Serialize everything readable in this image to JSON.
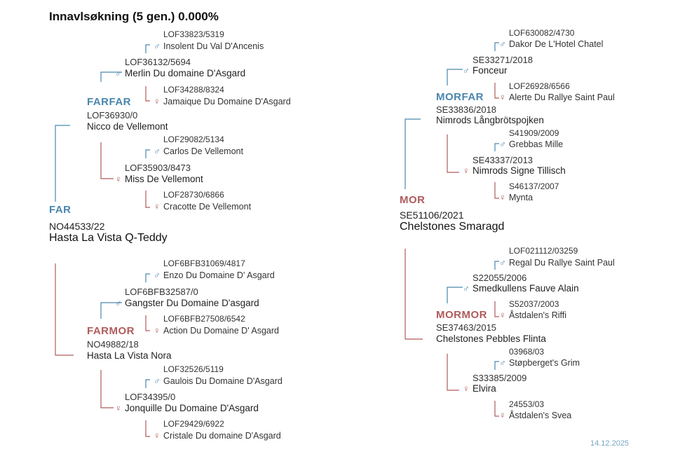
{
  "title": "Innavlsøkning (5 gen.) 0.000%",
  "date": "14.12.2025",
  "symbols": {
    "male": "♂",
    "female": "♀"
  },
  "colors": {
    "male": "#4a86ad",
    "female": "#b05b5b"
  },
  "far": {
    "label": "FAR",
    "reg": "NO44533/22",
    "name": "Hasta La Vista Q-Teddy",
    "farfar": {
      "label": "FARFAR",
      "reg": "LOF36930/0",
      "name": "Nicco de Vellemont",
      "father": {
        "reg": "LOF36132/5694",
        "name": "Merlin Du domaine D'Asgard",
        "father": {
          "reg": "LOF33823/5319",
          "name": "Insolent Du Val D'Ancenis"
        },
        "mother": {
          "reg": "LOF34288/8324",
          "name": "Jamaique Du Domaine D'Asgard"
        }
      },
      "mother": {
        "reg": "LOF35903/8473",
        "name": "Miss De Vellemont",
        "father": {
          "reg": "LOF29082/5134",
          "name": "Carlos De Vellemont"
        },
        "mother": {
          "reg": "LOF28730/6866",
          "name": "Cracotte De Vellemont"
        }
      }
    },
    "farmor": {
      "label": "FARMOR",
      "reg": "NO49882/18",
      "name": "Hasta La Vista Nora",
      "father": {
        "reg": "LOF6BFB32587/0",
        "name": "Gangster Du Domaine D'asgard",
        "father": {
          "reg": "LOF6BFB31069/4817",
          "name": "Enzo Du Domaine D' Asgard"
        },
        "mother": {
          "reg": "LOF6BFB27508/6542",
          "name": "Action Du Domaine D' Asgard"
        }
      },
      "mother": {
        "reg": "LOF34395/0",
        "name": "Jonquille Du Domaine D'Asgard",
        "father": {
          "reg": "LOF32526/5119",
          "name": "Gaulois Du Domaine D'Asgard"
        },
        "mother": {
          "reg": "LOF29429/6922",
          "name": "Cristale Du domaine D'Asgard"
        }
      }
    }
  },
  "mor": {
    "label": "MOR",
    "reg": "SE51106/2021",
    "name": "Chelstones Smaragd",
    "morfar": {
      "label": "MORFAR",
      "reg": "SE33836/2018",
      "name": "Nimrods Långbrötspojken",
      "father": {
        "reg": "SE33271/2018",
        "name": "Fonceur",
        "father": {
          "reg": "LOF630082/4730",
          "name": "Dakor De L'Hotel Chatel"
        },
        "mother": {
          "reg": "LOF26928/6566",
          "name": "Alerte Du Rallye Saint Paul"
        }
      },
      "mother": {
        "reg": "SE43337/2013",
        "name": "Nimrods Signe Tillisch",
        "father": {
          "reg": "S41909/2009",
          "name": "Grebbas Mille"
        },
        "mother": {
          "reg": "S46137/2007",
          "name": "Mynta"
        }
      }
    },
    "mormor": {
      "label": "MORMOR",
      "reg": "SE37463/2015",
      "name": "Chelstones Pebbles Flinta",
      "father": {
        "reg": "S22055/2006",
        "name": "Smedkullens Fauve Alain",
        "father": {
          "reg": "LOF021112/03259",
          "name": "Regal Du Rallye Saint Paul"
        },
        "mother": {
          "reg": "S52037/2003",
          "name": "Åstdalen's Riffi"
        }
      },
      "mother": {
        "reg": "S33385/2009",
        "name": "Elvira",
        "father": {
          "reg": "03968/03",
          "name": "Støpberget's Grim"
        },
        "mother": {
          "reg": "24553/03",
          "name": "Åstdalen's Svea"
        }
      }
    }
  }
}
